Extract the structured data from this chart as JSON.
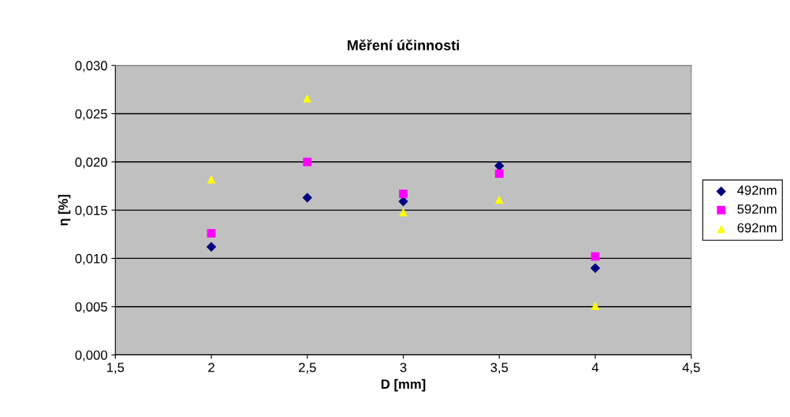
{
  "chart_data": {
    "type": "scatter",
    "title": "Měření účinnosti",
    "xlabel": "D [mm]",
    "ylabel": "η [%]",
    "x": [
      2,
      2.5,
      3,
      3.5,
      4
    ],
    "series": [
      {
        "name": "492nm",
        "color": "#000080",
        "marker": "diamond",
        "values": [
          0.0112,
          0.0163,
          0.0159,
          0.0196,
          0.009
        ]
      },
      {
        "name": "592nm",
        "color": "#ff00ff",
        "marker": "square",
        "values": [
          0.0126,
          0.02,
          0.0167,
          0.0188,
          0.0102
        ]
      },
      {
        "name": "692nm",
        "color": "#ffff00",
        "marker": "triangle",
        "values": [
          0.0182,
          0.0266,
          0.0148,
          0.0161,
          0.0051
        ]
      }
    ],
    "xlim": [
      1.5,
      4.5
    ],
    "xticks": [
      {
        "value": 1.5,
        "label": "1,5"
      },
      2,
      {
        "value": 2.5,
        "label": "2,5"
      },
      3,
      {
        "value": 3.5,
        "label": "3,5"
      },
      4,
      {
        "value": 4.5,
        "label": "4,5"
      }
    ],
    "ylim": [
      0,
      0.03
    ],
    "yticks": [
      {
        "value": 0,
        "label": "0,000"
      },
      {
        "value": 0.005,
        "label": "0,005"
      },
      {
        "value": 0.01,
        "label": "0,010"
      },
      {
        "value": 0.015,
        "label": "0,015"
      },
      {
        "value": 0.02,
        "label": "0,020"
      },
      {
        "value": 0.025,
        "label": "0,025"
      },
      {
        "value": 0.03,
        "label": "0,030"
      }
    ],
    "grid": "y",
    "legend": "right"
  }
}
